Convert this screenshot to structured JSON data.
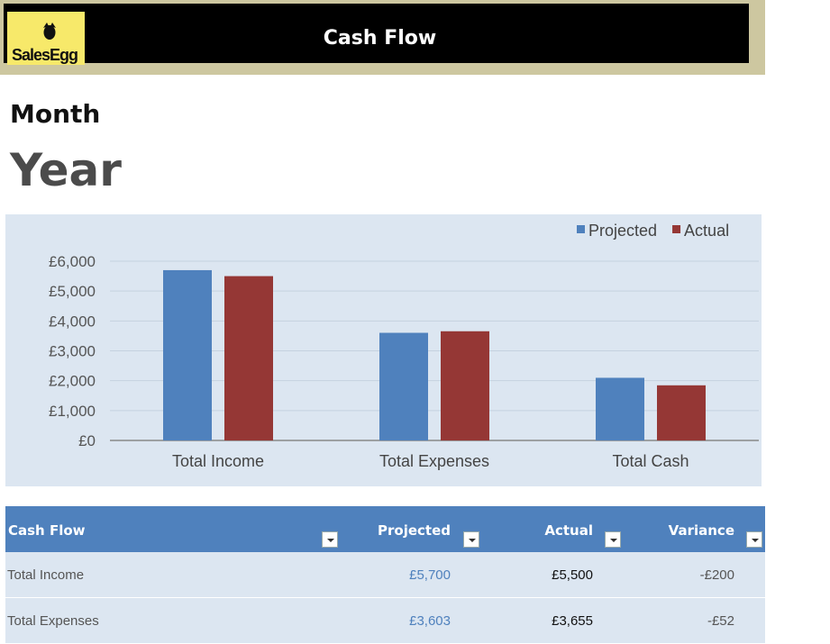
{
  "header": {
    "title": "Cash Flow",
    "logo_text": "SalesEgg"
  },
  "period": {
    "month": "Month",
    "year": "Year"
  },
  "colors": {
    "projected": "#4f81bd",
    "actual": "#953735",
    "chart_bg": "#dce6f1",
    "banner_bg": "#000000",
    "banner_border": "#cdc7a0",
    "logo_bg": "#f7e96a"
  },
  "chart_data": {
    "type": "bar",
    "categories": [
      "Total Income",
      "Total Expenses",
      "Total Cash"
    ],
    "series": [
      {
        "name": "Projected",
        "values": [
          5700,
          3603,
          2097
        ]
      },
      {
        "name": "Actual",
        "values": [
          5500,
          3655,
          1845
        ]
      }
    ],
    "ylim": [
      0,
      6000
    ],
    "yticks": [
      "£0",
      "£1,000",
      "£2,000",
      "£3,000",
      "£4,000",
      "£5,000",
      "£6,000"
    ],
    "grid": true,
    "legend": "top-right"
  },
  "table": {
    "columns": [
      "Cash Flow",
      "Projected",
      "Actual",
      "Variance"
    ],
    "rows": [
      {
        "label": "Total Income",
        "projected": "£5,700",
        "actual": "£5,500",
        "variance": "-£200"
      },
      {
        "label": "Total Expenses",
        "projected": "£3,603",
        "actual": "£3,655",
        "variance": "-£52"
      }
    ]
  }
}
